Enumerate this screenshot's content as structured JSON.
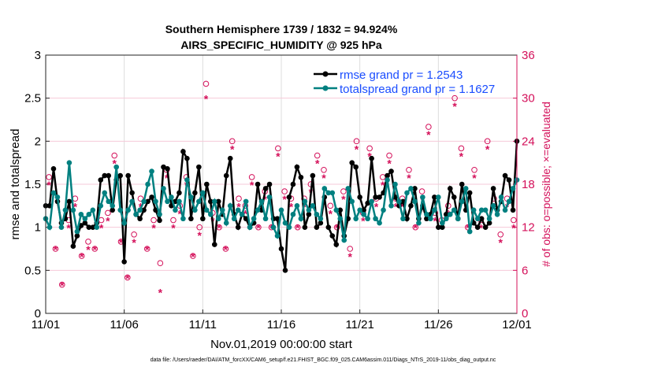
{
  "chart_data": {
    "type": "line",
    "title": "Southern Hemisphere 1739 / 1832 = 94.924%",
    "subtitle": "AIRS_SPECIFIC_HUMIDITY @ 925 hPa",
    "xlabel": "Nov.01,2019 00:00:00 start",
    "ylabel": "rmse and totalspread",
    "ylabel_right": "# of obs: o=possible; ×=evaluated",
    "footer": "data file: /Users/raeder/DAI/ATM_forcXX/CAM6_setup/f.e21.FHIST_BGC.f09_025.CAM6assim.011/Diags_NTrS_2019-11/obs_diag_output.nc",
    "xlim": [
      0,
      30
    ],
    "ylim": [
      0,
      3
    ],
    "ylim_right": [
      0,
      36
    ],
    "x_ticks": [
      {
        "v": 0,
        "label": "11/01"
      },
      {
        "v": 5,
        "label": "11/06"
      },
      {
        "v": 10,
        "label": "11/11"
      },
      {
        "v": 15,
        "label": "11/16"
      },
      {
        "v": 20,
        "label": "11/21"
      },
      {
        "v": 25,
        "label": "11/26"
      },
      {
        "v": 30,
        "label": "12/01"
      }
    ],
    "y_ticks": [
      "0",
      "0.5",
      "1",
      "1.5",
      "2",
      "2.5",
      "3"
    ],
    "y_ticks_right": [
      "0",
      "6",
      "12",
      "18",
      "24",
      "30",
      "36"
    ],
    "legend": [
      {
        "label": "rmse grand pr = 1.2543",
        "color": "#000000"
      },
      {
        "label": "totalspread grand pr = 1.1627",
        "color": "#008080"
      }
    ],
    "legend_position": "top-right",
    "x_step_days": 0.25,
    "series": [
      {
        "name": "rmse",
        "color": "#000000",
        "values": [
          1.25,
          1.25,
          1.68,
          1.3,
          1.05,
          1.1,
          1.3,
          0.78,
          0.9,
          1.02,
          1.05,
          1.0,
          1.0,
          1.05,
          1.55,
          1.6,
          1.6,
          1.2,
          1.55,
          1.6,
          0.6,
          1.6,
          1.4,
          1.15,
          1.1,
          1.2,
          1.3,
          1.35,
          1.2,
          1.08,
          1.7,
          1.68,
          1.25,
          1.3,
          1.4,
          1.88,
          1.8,
          1.1,
          1.4,
          1.7,
          1.1,
          1.5,
          1.3,
          0.8,
          1.3,
          1.15,
          1.6,
          1.8,
          1.15,
          1.0,
          1.15,
          1.1,
          1.0,
          1.05,
          1.5,
          1.2,
          1.45,
          1.5,
          1.1,
          1.1,
          0.75,
          0.5,
          1.35,
          1.5,
          1.7,
          1.58,
          1.0,
          1.15,
          1.6,
          1.0,
          1.05,
          1.35,
          1.0,
          0.9,
          0.8,
          1.2,
          0.9,
          1.1,
          1.75,
          1.7,
          1.35,
          1.2,
          1.28,
          1.8,
          1.35,
          1.35,
          1.4,
          1.6,
          1.65,
          1.35,
          1.25,
          1.3,
          1.1,
          1.25,
          1.45,
          1.1,
          1.25,
          1.1,
          1.15,
          1.35,
          1.0,
          1.0,
          1.15,
          1.45,
          1.35,
          1.1,
          1.5,
          1.2,
          1.4,
          1.05,
          1.0,
          1.1,
          1.0,
          1.05,
          1.45,
          1.2,
          1.3,
          1.6,
          1.55,
          1.2,
          2.0
        ]
      },
      {
        "name": "totalspread",
        "color": "#008080",
        "values": [
          1.1,
          1.0,
          1.4,
          1.35,
          1.0,
          1.2,
          1.75,
          1.2,
          0.95,
          1.15,
          1.1,
          1.15,
          1.2,
          1.0,
          1.25,
          1.4,
          1.3,
          1.25,
          1.7,
          1.2,
          1.05,
          1.2,
          1.3,
          1.15,
          1.2,
          1.3,
          1.5,
          1.65,
          1.3,
          1.15,
          1.45,
          1.3,
          1.35,
          1.2,
          1.3,
          1.1,
          1.55,
          1.35,
          1.2,
          1.3,
          1.4,
          1.2,
          1.15,
          1.3,
          1.1,
          1.2,
          1.05,
          1.25,
          1.1,
          1.2,
          1.15,
          1.3,
          1.0,
          1.1,
          1.2,
          1.3,
          1.1,
          1.35,
          1.0,
          0.9,
          1.2,
          1.05,
          1.0,
          1.15,
          1.25,
          1.1,
          1.3,
          1.2,
          1.25,
          1.15,
          1.1,
          1.45,
          1.4,
          1.4,
          1.2,
          1.1,
          0.85,
          1.45,
          1.3,
          1.1,
          1.2,
          1.15,
          1.1,
          1.3,
          1.1,
          1.05,
          1.2,
          1.55,
          1.25,
          1.5,
          1.3,
          1.1,
          1.4,
          1.45,
          1.3,
          1.05,
          1.35,
          1.15,
          1.1,
          1.2,
          1.35,
          1.05,
          1.1,
          1.15,
          1.2,
          1.1,
          1.3,
          1.45,
          0.95,
          1.2,
          1.1,
          1.2,
          1.2,
          1.1,
          1.25,
          1.15,
          1.35,
          1.2,
          1.3,
          1.45,
          1.55
        ]
      },
      {
        "name": "obs possible",
        "color": "#d4105a",
        "marker": "circle",
        "values": [
          19,
          9,
          4,
          13,
          16,
          8,
          10,
          9,
          13,
          14,
          22,
          10,
          5,
          11,
          16,
          9,
          13,
          7,
          20,
          13,
          15,
          19,
          8,
          12,
          32,
          14,
          12,
          9,
          24,
          16,
          15,
          19,
          12,
          17,
          12,
          23,
          17,
          16,
          12,
          16,
          18,
          22,
          20,
          15,
          12,
          17,
          9,
          24,
          14,
          23,
          16,
          19,
          22,
          16,
          16,
          20,
          12,
          17,
          26,
          14,
          13,
          15,
          30,
          23,
          12,
          20,
          13,
          24,
          16,
          11,
          16,
          13
        ]
      },
      {
        "name": "obs evaluated",
        "color": "#d4105a",
        "marker": "asterisk",
        "values": [
          18,
          9,
          4,
          12,
          15,
          8,
          9,
          9,
          12,
          13,
          21,
          10,
          5,
          10,
          15,
          9,
          12,
          3,
          19,
          12,
          14,
          18,
          8,
          11,
          30,
          13,
          12,
          9,
          23,
          15,
          14,
          18,
          12,
          16,
          12,
          22,
          16,
          15,
          12,
          15,
          17,
          21,
          19,
          14,
          12,
          16,
          8,
          23,
          13,
          22,
          15,
          18,
          21,
          15,
          15,
          19,
          12,
          16,
          25,
          13,
          12,
          14,
          29,
          22,
          12,
          19,
          12,
          23,
          15,
          10,
          15,
          12
        ]
      }
    ]
  }
}
